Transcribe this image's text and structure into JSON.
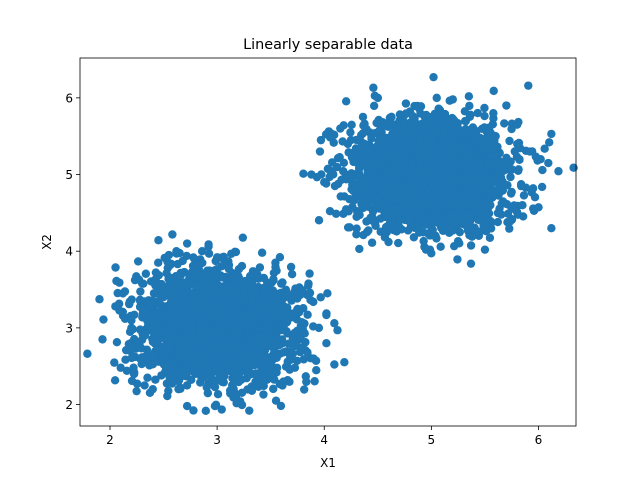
{
  "chart_data": {
    "type": "scatter",
    "title": "Linearly separable data",
    "xlabel": "X1",
    "ylabel": "X2",
    "xlim": [
      1.72,
      6.35
    ],
    "ylim": [
      1.72,
      6.52
    ],
    "xticks": [
      2,
      3,
      4,
      5,
      6
    ],
    "yticks": [
      2,
      3,
      4,
      5,
      6
    ],
    "grid": false,
    "legend": "none",
    "color": "#1f77b4",
    "series": [
      {
        "name": "",
        "cluster": {
          "center": [
            3.0,
            3.0
          ],
          "std": [
            0.35,
            0.35
          ]
        },
        "points": [
          [
            1.93,
            2.85
          ],
          [
            2.05,
            3.28
          ],
          [
            2.12,
            3.45
          ],
          [
            2.18,
            3.32
          ],
          [
            2.22,
            2.48
          ],
          [
            2.28,
            2.6
          ],
          [
            2.3,
            3.58
          ],
          [
            2.35,
            2.35
          ],
          [
            2.1,
            2.48
          ],
          [
            2.45,
            3.85
          ],
          [
            2.55,
            3.95
          ],
          [
            2.62,
            4.0
          ],
          [
            2.72,
            4.1
          ],
          [
            2.86,
            4.0
          ],
          [
            2.92,
            4.06
          ],
          [
            3.0,
            3.92
          ],
          [
            3.42,
            3.98
          ],
          [
            3.85,
            3.55
          ],
          [
            4.02,
            2.8
          ],
          [
            3.95,
            3.0
          ],
          [
            3.62,
            2.3
          ],
          [
            3.55,
            2.05
          ],
          [
            3.3,
            1.92
          ],
          [
            2.98,
            1.98
          ],
          [
            2.72,
            1.98
          ],
          [
            2.6,
            2.4
          ],
          [
            3.7,
            3.7
          ],
          [
            3.8,
            2.98
          ],
          [
            3.65,
            3.45
          ],
          [
            2.2,
            3.0
          ],
          [
            3.9,
            2.6
          ],
          [
            2.48,
            2.38
          ],
          [
            3.2,
            3.1
          ],
          [
            2.9,
            2.8
          ],
          [
            3.1,
            2.7
          ],
          [
            3.25,
            3.35
          ],
          [
            2.75,
            3.2
          ],
          [
            3.4,
            2.9
          ],
          [
            2.85,
            3.4
          ],
          [
            3.05,
            3.25
          ]
        ]
      },
      {
        "name": "",
        "cluster": {
          "center": [
            5.0,
            5.0
          ],
          "std": [
            0.35,
            0.35
          ]
        },
        "points": [
          [
            3.88,
            5.0
          ],
          [
            3.96,
            5.3
          ],
          [
            4.1,
            4.85
          ],
          [
            4.15,
            5.6
          ],
          [
            4.3,
            4.22
          ],
          [
            4.4,
            4.25
          ],
          [
            4.5,
            6.0
          ],
          [
            4.6,
            4.12
          ],
          [
            4.95,
            4.02
          ],
          [
            5.02,
            6.27
          ],
          [
            5.05,
            6.0
          ],
          [
            5.2,
            5.98
          ],
          [
            5.35,
            6.02
          ],
          [
            5.5,
            4.02
          ],
          [
            5.62,
            4.38
          ],
          [
            5.8,
            5.65
          ],
          [
            5.92,
            5.3
          ],
          [
            6.02,
            5.2
          ],
          [
            6.1,
            5.42
          ],
          [
            6.12,
            5.53
          ],
          [
            6.12,
            4.3
          ],
          [
            5.95,
            4.82
          ],
          [
            5.85,
            4.6
          ],
          [
            5.7,
            5.9
          ],
          [
            4.25,
            5.45
          ],
          [
            4.0,
            4.9
          ],
          [
            5.1,
            5.2
          ],
          [
            4.9,
            4.8
          ],
          [
            5.3,
            4.9
          ],
          [
            4.75,
            5.1
          ],
          [
            5.15,
            4.65
          ],
          [
            4.85,
            5.35
          ],
          [
            5.45,
            5.15
          ],
          [
            4.55,
            4.75
          ],
          [
            5.6,
            5.5
          ],
          [
            4.4,
            5.3
          ],
          [
            5.25,
            5.6
          ],
          [
            4.7,
            4.4
          ],
          [
            5.55,
            4.6
          ],
          [
            5.0,
            5.0
          ]
        ]
      }
    ]
  }
}
